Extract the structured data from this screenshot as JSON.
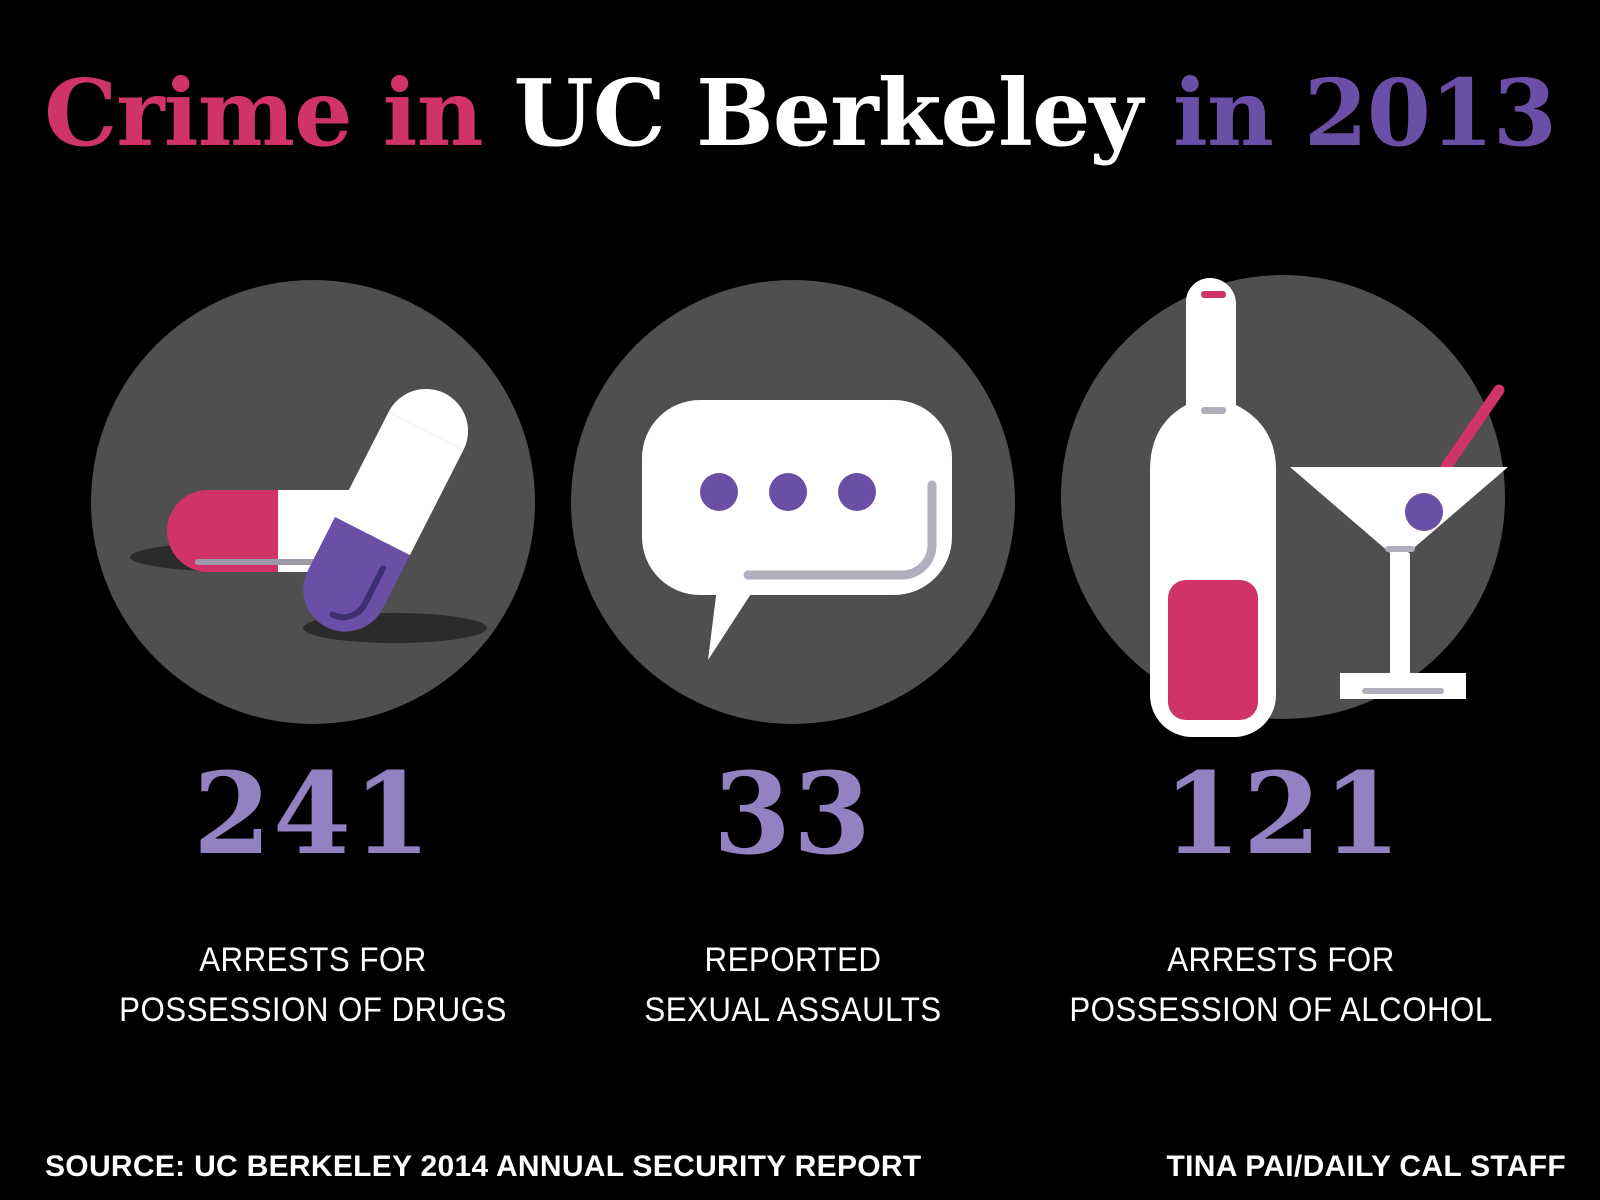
{
  "title": {
    "parts": [
      "Crime in ",
      "UC Berkeley",
      " in 2013"
    ],
    "colors": [
      "#cf3368",
      "#ffffff",
      "#6b4fa6"
    ]
  },
  "stats": [
    {
      "number": "241",
      "label_lines": [
        "ARRESTS FOR",
        "POSSESSION OF DRUGS"
      ],
      "icon": "pills-icon"
    },
    {
      "number": "33",
      "label_lines": [
        "REPORTED",
        "SEXUAL ASSAULTS"
      ],
      "icon": "speech-bubble-icon"
    },
    {
      "number": "121",
      "label_lines": [
        "ARRESTS FOR",
        "POSSESSION OF ALCOHOL"
      ],
      "icon": "bottle-and-martini-icon"
    }
  ],
  "footer": {
    "source": "SOURCE: UC BERKELEY 2014 ANNUAL SECURITY REPORT",
    "credit": "TINA PAI/DAILY CAL STAFF"
  },
  "colors": {
    "magenta": "#cf3368",
    "purple": "#6b4fa6",
    "light_purple": "#9382c2",
    "circle_gray": "#4f4f4f",
    "white": "#ffffff"
  }
}
